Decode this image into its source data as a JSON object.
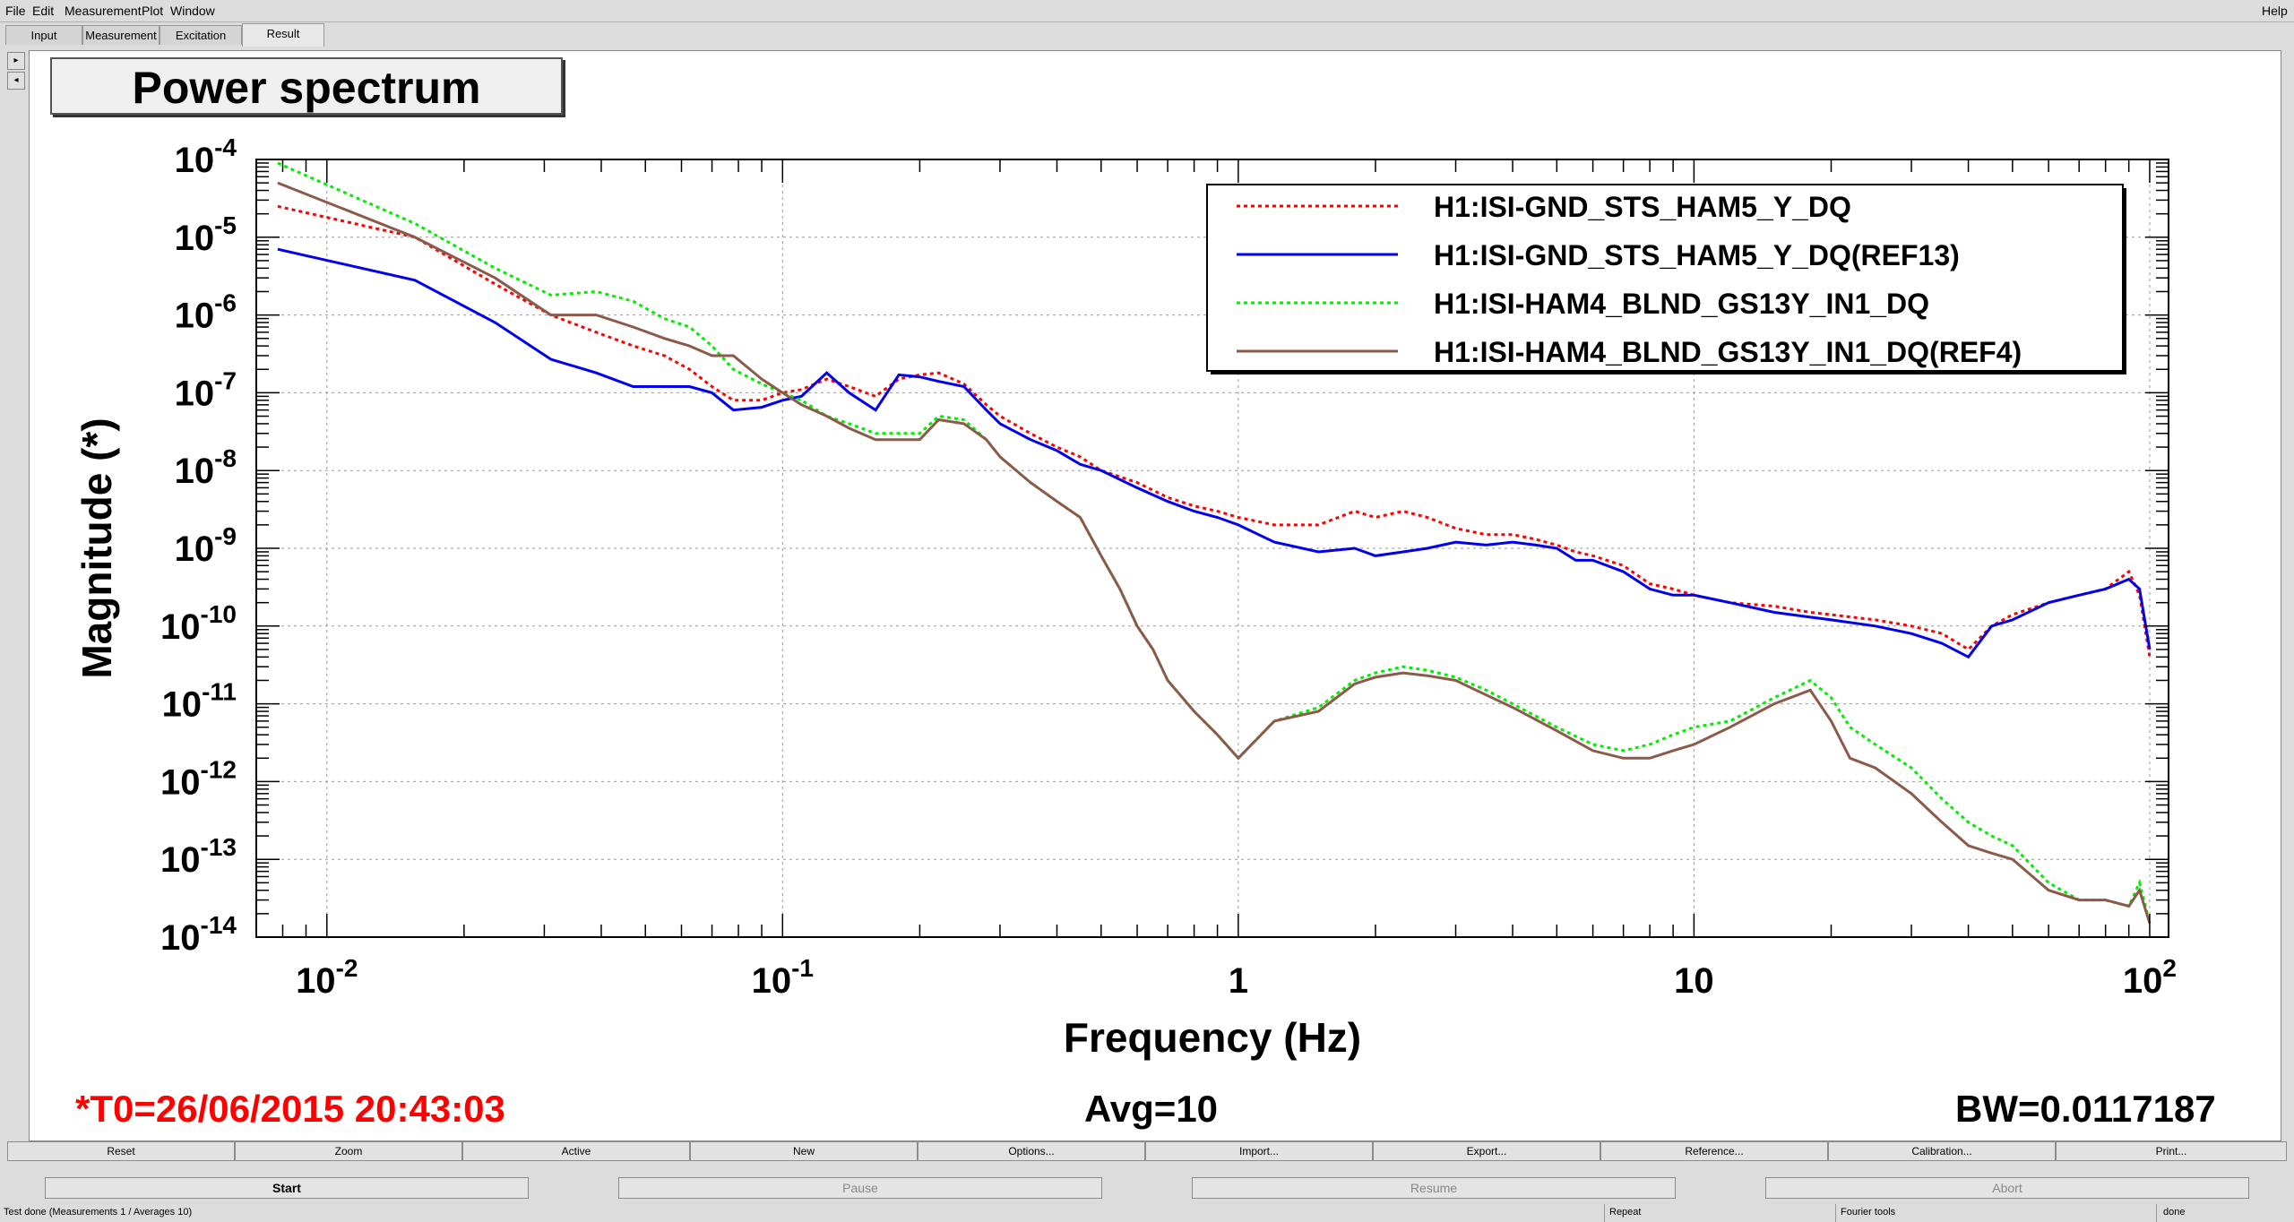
{
  "menu": {
    "items": [
      "File",
      "Edit",
      "Measurement",
      "Plot",
      "Window"
    ],
    "help": "Help"
  },
  "tabs": [
    "Input",
    "Measurement",
    "Excitation",
    "Result"
  ],
  "plot_title": "Power spectrum",
  "chart_data": {
    "type": "line",
    "title": "Power spectrum",
    "xlabel": "Frequency (Hz)",
    "ylabel": "Magnitude (*)",
    "xscale": "log",
    "yscale": "log",
    "xlim": [
      0.007,
      110
    ],
    "ylim": [
      1e-14,
      0.0001
    ],
    "grid": true,
    "legend_position": "top-right",
    "x_tick_labels": [
      {
        "v": 0.01,
        "base": "10",
        "exp": "-2"
      },
      {
        "v": 0.1,
        "base": "10",
        "exp": "-1"
      },
      {
        "v": 1,
        "base": "1",
        "exp": ""
      },
      {
        "v": 10,
        "base": "10",
        "exp": ""
      },
      {
        "v": 100,
        "base": "10",
        "exp": "2"
      }
    ],
    "y_tick_labels": [
      {
        "v": 0.0001,
        "base": "10",
        "exp": "-4"
      },
      {
        "v": 1e-05,
        "base": "10",
        "exp": "-5"
      },
      {
        "v": 1e-06,
        "base": "10",
        "exp": "-6"
      },
      {
        "v": 1e-07,
        "base": "10",
        "exp": "-7"
      },
      {
        "v": 1e-08,
        "base": "10",
        "exp": "-8"
      },
      {
        "v": 1e-09,
        "base": "10",
        "exp": "-9"
      },
      {
        "v": 1e-10,
        "base": "10",
        "exp": "-10"
      },
      {
        "v": 1e-11,
        "base": "10",
        "exp": "-11"
      },
      {
        "v": 1e-12,
        "base": "10",
        "exp": "-12"
      },
      {
        "v": 1e-13,
        "base": "10",
        "exp": "-13"
      },
      {
        "v": 1e-14,
        "base": "10",
        "exp": "-14"
      }
    ],
    "series": [
      {
        "name": "H1:ISI-GND_STS_HAM5_Y_DQ",
        "color": "#ff0000",
        "dash": "dotted",
        "x": [
          0.0078,
          0.0156,
          0.0234,
          0.031,
          0.039,
          0.047,
          0.055,
          0.0625,
          0.07,
          0.078,
          0.09,
          0.1,
          0.11,
          0.125,
          0.14,
          0.16,
          0.18,
          0.2,
          0.22,
          0.25,
          0.28,
          0.3,
          0.35,
          0.4,
          0.45,
          0.5,
          0.6,
          0.7,
          0.8,
          0.9,
          1.0,
          1.2,
          1.5,
          1.8,
          2.0,
          2.3,
          2.6,
          3.0,
          3.5,
          4.0,
          4.5,
          5.0,
          5.5,
          6.0,
          7.0,
          8.0,
          9.0,
          10,
          12,
          15,
          18,
          20,
          25,
          30,
          35,
          40,
          45,
          50,
          60,
          70,
          80,
          90,
          95,
          100
        ],
        "y": [
          2.5e-05,
          1e-05,
          2.5e-06,
          1e-06,
          6e-07,
          4e-07,
          3e-07,
          2e-07,
          1.2e-07,
          8e-08,
          8e-08,
          1e-07,
          1.1e-07,
          1.5e-07,
          1.2e-07,
          9e-08,
          1.5e-07,
          1.7e-07,
          1.8e-07,
          1.3e-07,
          7e-08,
          5e-08,
          3e-08,
          2e-08,
          1.5e-08,
          1e-08,
          7e-09,
          4.5e-09,
          3.5e-09,
          3e-09,
          2.5e-09,
          2e-09,
          2e-09,
          3e-09,
          2.5e-09,
          3e-09,
          2.5e-09,
          1.8e-09,
          1.5e-09,
          1.5e-09,
          1.3e-09,
          1.1e-09,
          9e-10,
          8e-10,
          6e-10,
          3.5e-10,
          3e-10,
          2.5e-10,
          2e-10,
          1.8e-10,
          1.5e-10,
          1.4e-10,
          1.2e-10,
          1e-10,
          8e-11,
          5e-11,
          1e-10,
          1.4e-10,
          2e-10,
          2.5e-10,
          3e-10,
          5e-10,
          2.5e-10,
          4e-11
        ]
      },
      {
        "name": "H1:ISI-GND_STS_HAM5_Y_DQ(REF13)",
        "color": "#0000ee",
        "dash": "solid",
        "x": [
          0.0078,
          0.0156,
          0.0234,
          0.031,
          0.039,
          0.047,
          0.055,
          0.0625,
          0.07,
          0.078,
          0.09,
          0.1,
          0.11,
          0.125,
          0.14,
          0.16,
          0.18,
          0.2,
          0.22,
          0.25,
          0.28,
          0.3,
          0.35,
          0.4,
          0.45,
          0.5,
          0.6,
          0.7,
          0.8,
          0.9,
          1.0,
          1.2,
          1.5,
          1.8,
          2.0,
          2.3,
          2.6,
          3.0,
          3.5,
          4.0,
          4.5,
          5.0,
          5.5,
          6.0,
          7.0,
          8.0,
          9.0,
          10,
          12,
          15,
          18,
          20,
          25,
          30,
          35,
          40,
          45,
          50,
          60,
          70,
          80,
          90,
          95,
          100
        ],
        "y": [
          7e-06,
          2.8e-06,
          8e-07,
          2.7e-07,
          1.8e-07,
          1.2e-07,
          1.2e-07,
          1.2e-07,
          1e-07,
          6e-08,
          6.5e-08,
          8e-08,
          9e-08,
          1.8e-07,
          1e-07,
          6e-08,
          1.7e-07,
          1.6e-07,
          1.4e-07,
          1.2e-07,
          6e-08,
          4e-08,
          2.5e-08,
          1.8e-08,
          1.2e-08,
          1e-08,
          6e-09,
          4e-09,
          3e-09,
          2.5e-09,
          2e-09,
          1.2e-09,
          9e-10,
          1e-09,
          8e-10,
          9e-10,
          1e-09,
          1.2e-09,
          1.1e-09,
          1.2e-09,
          1.1e-09,
          1e-09,
          7e-10,
          7e-10,
          5e-10,
          3e-10,
          2.5e-10,
          2.5e-10,
          2e-10,
          1.5e-10,
          1.3e-10,
          1.2e-10,
          1e-10,
          8e-11,
          6e-11,
          4e-11,
          1e-10,
          1.2e-10,
          2e-10,
          2.5e-10,
          3e-10,
          4e-10,
          3e-10,
          5e-11
        ]
      },
      {
        "name": "H1:ISI-HAM4_BLND_GS13Y_IN1_DQ",
        "color": "#00ee00",
        "dash": "dotted",
        "x": [
          0.0078,
          0.0156,
          0.0234,
          0.031,
          0.039,
          0.047,
          0.055,
          0.0625,
          0.07,
          0.078,
          0.09,
          0.1,
          0.11,
          0.125,
          0.14,
          0.16,
          0.18,
          0.2,
          0.22,
          0.25,
          0.28,
          0.3,
          0.35,
          0.4,
          0.45,
          0.5,
          0.55,
          0.6,
          0.65,
          0.7,
          0.8,
          0.9,
          1.0,
          1.2,
          1.5,
          1.8,
          2.0,
          2.3,
          2.6,
          3.0,
          3.5,
          4.0,
          5.0,
          6.0,
          7.0,
          8.0,
          9.0,
          10,
          12,
          15,
          18,
          20,
          22,
          25,
          30,
          35,
          40,
          45,
          50,
          60,
          70,
          80,
          90,
          95,
          100
        ],
        "y": [
          9e-05,
          1.5e-05,
          4e-06,
          1.8e-06,
          2e-06,
          1.5e-06,
          9e-07,
          7e-07,
          4e-07,
          2e-07,
          1.3e-07,
          1e-07,
          8e-08,
          5e-08,
          4e-08,
          3e-08,
          3e-08,
          3e-08,
          5e-08,
          4.5e-08,
          2.5e-08,
          1.5e-08,
          7e-09,
          4e-09,
          2.5e-09,
          8e-10,
          3e-10,
          1e-10,
          5e-11,
          2e-11,
          8e-12,
          4e-12,
          2e-12,
          6e-12,
          9e-12,
          2e-11,
          2.5e-11,
          3e-11,
          2.7e-11,
          2.2e-11,
          1.5e-11,
          1e-11,
          5e-12,
          3e-12,
          2.5e-12,
          3e-12,
          4e-12,
          5e-12,
          6e-12,
          1.2e-11,
          2e-11,
          1.2e-11,
          5e-12,
          3e-12,
          1.5e-12,
          6e-13,
          3e-13,
          2e-13,
          1.5e-13,
          5e-14,
          3e-14,
          3e-14,
          2.5e-14,
          5e-14,
          1.5e-14
        ]
      },
      {
        "name": "H1:ISI-HAM4_BLND_GS13Y_IN1_DQ(REF4)",
        "color": "#8b5a4a",
        "dash": "solid",
        "x": [
          0.0078,
          0.0156,
          0.0234,
          0.031,
          0.039,
          0.047,
          0.055,
          0.0625,
          0.07,
          0.078,
          0.09,
          0.1,
          0.11,
          0.125,
          0.14,
          0.16,
          0.18,
          0.2,
          0.22,
          0.25,
          0.28,
          0.3,
          0.35,
          0.4,
          0.45,
          0.5,
          0.55,
          0.6,
          0.65,
          0.7,
          0.8,
          0.9,
          1.0,
          1.2,
          1.5,
          1.8,
          2.0,
          2.3,
          2.6,
          3.0,
          3.5,
          4.0,
          5.0,
          6.0,
          7.0,
          8.0,
          9.0,
          10,
          12,
          15,
          18,
          20,
          22,
          25,
          30,
          35,
          40,
          45,
          50,
          60,
          70,
          80,
          90,
          95,
          100
        ],
        "y": [
          5e-05,
          1e-05,
          3e-06,
          1e-06,
          1e-06,
          7e-07,
          5e-07,
          4e-07,
          3e-07,
          3e-07,
          1.5e-07,
          1e-07,
          7e-08,
          5e-08,
          3.5e-08,
          2.5e-08,
          2.5e-08,
          2.5e-08,
          4.5e-08,
          4e-08,
          2.5e-08,
          1.5e-08,
          7e-09,
          4e-09,
          2.5e-09,
          8e-10,
          3e-10,
          1e-10,
          5e-11,
          2e-11,
          8e-12,
          4e-12,
          2e-12,
          6e-12,
          8e-12,
          1.8e-11,
          2.2e-11,
          2.5e-11,
          2.3e-11,
          2e-11,
          1.3e-11,
          9e-12,
          4.5e-12,
          2.5e-12,
          2e-12,
          2e-12,
          2.5e-12,
          3e-12,
          5e-12,
          1e-11,
          1.5e-11,
          6e-12,
          2e-12,
          1.5e-12,
          7e-13,
          3e-13,
          1.5e-13,
          1.2e-13,
          1e-13,
          4e-14,
          3e-14,
          3e-14,
          2.5e-14,
          4e-14,
          1.5e-14
        ]
      }
    ]
  },
  "footer": {
    "t0": "*T0=26/06/2015 20:43:03",
    "avg": "Avg=10",
    "bw": "BW=0.0117187"
  },
  "toolbar1": [
    "Reset",
    "Zoom",
    "Active",
    "New",
    "Options...",
    "Import...",
    "Export...",
    "Reference...",
    "Calibration...",
    "Print..."
  ],
  "toolbar2": [
    "Start",
    "Pause",
    "Resume",
    "Abort"
  ],
  "status": {
    "left": "Test done (Measurements 1 / Averages 10)",
    "repeat": "Repeat",
    "tools": "Fourier tools",
    "done": "done"
  },
  "colors": {
    "t0": "#ff0000"
  }
}
